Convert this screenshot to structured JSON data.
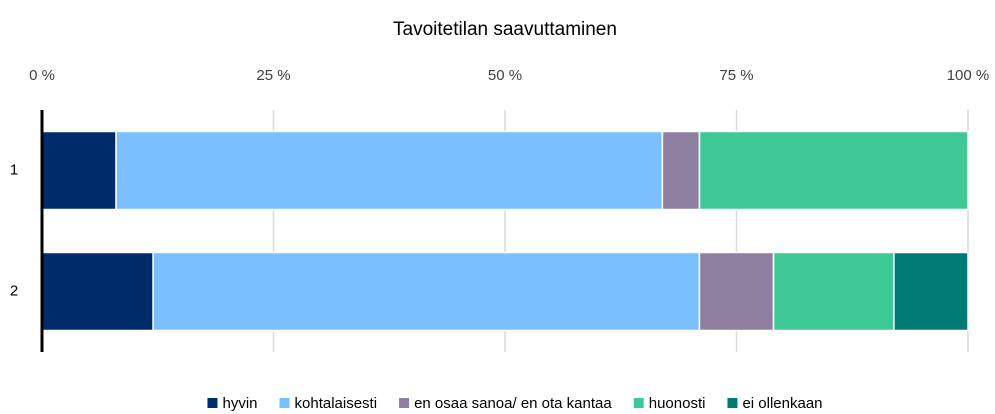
{
  "chart_data": {
    "type": "stacked-barh",
    "title": "Tavoitetilan saavuttaminen",
    "categories": [
      "1",
      "2"
    ],
    "series": [
      {
        "name": "hyvin",
        "color": "#002b6b",
        "values": [
          8,
          12
        ]
      },
      {
        "name": "kohtalaisesti",
        "color": "#7abfff",
        "values": [
          59,
          59
        ]
      },
      {
        "name": "en osaa sanoa/ en ota kantaa",
        "color": "#8e7fa0",
        "values": [
          4,
          8
        ]
      },
      {
        "name": "huonosti",
        "color": "#3ec896",
        "values": [
          29,
          13
        ]
      },
      {
        "name": "ei ollenkaan",
        "color": "#007a73",
        "values": [
          0,
          8
        ]
      }
    ],
    "xlim": [
      0,
      100
    ],
    "xticks": [
      {
        "value": 0,
        "label": "0 %"
      },
      {
        "value": 25,
        "label": "25 %"
      },
      {
        "value": 50,
        "label": "50 %"
      },
      {
        "value": 75,
        "label": "75 %"
      },
      {
        "value": 100,
        "label": "100 %"
      }
    ],
    "grid": true,
    "legend": "bottom"
  }
}
